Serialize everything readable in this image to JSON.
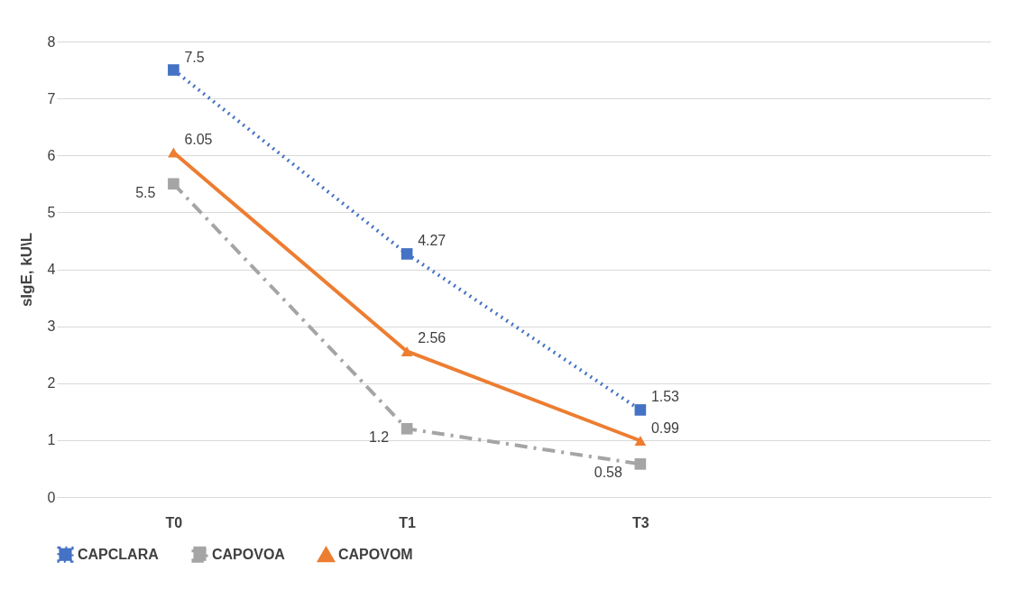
{
  "chart_data": {
    "type": "line",
    "ylabel": "sIgE, kU\\L",
    "categories": [
      "T0",
      "T1",
      "T3",
      null
    ],
    "series": [
      {
        "name": "CAPCLARA",
        "color": "#4472c4",
        "marker": "square",
        "line_style": "dotted",
        "values": [
          7.5,
          4.27,
          1.53,
          null
        ]
      },
      {
        "name": "CAPOVOA",
        "color": "#a5a5a5",
        "marker": "square",
        "line_style": "dashdot",
        "values": [
          5.5,
          1.2,
          0.58,
          null
        ]
      },
      {
        "name": "CAPOVOM",
        "color": "#ed7d31",
        "marker": "triangle",
        "line_style": "solid",
        "values": [
          6.05,
          2.56,
          0.99,
          null
        ]
      }
    ],
    "ylim": [
      0,
      8
    ],
    "yticks": [
      0,
      1,
      2,
      3,
      4,
      5,
      6,
      7,
      8
    ],
    "grid": "y",
    "legend": "bottom",
    "data_labels": true
  }
}
